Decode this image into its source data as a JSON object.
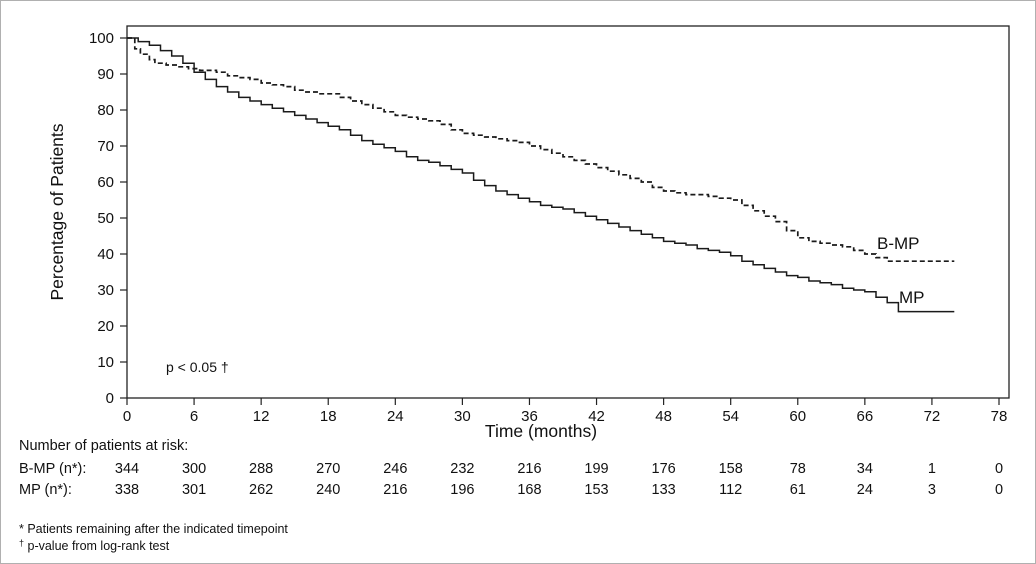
{
  "chart_data": {
    "type": "line",
    "subtype": "kaplan-meier-step",
    "title": "",
    "xlabel": "Time (months)",
    "ylabel": "Percentage of Patients",
    "xlim": [
      0,
      78
    ],
    "ylim": [
      0,
      100
    ],
    "xticks": [
      0,
      6,
      12,
      18,
      24,
      30,
      36,
      42,
      48,
      54,
      60,
      66,
      72,
      78
    ],
    "yticks": [
      0,
      10,
      20,
      30,
      40,
      50,
      60,
      70,
      80,
      90,
      100
    ],
    "grid": false,
    "annotation": "p < 0.05 †",
    "line_color": "#1a1a1a",
    "series": [
      {
        "name": "B-MP",
        "style": "dashed",
        "end_label": "B-MP",
        "points": [
          [
            0,
            100
          ],
          [
            0.7,
            97
          ],
          [
            1.2,
            95.5
          ],
          [
            2,
            94
          ],
          [
            2.5,
            93
          ],
          [
            3.5,
            92.5
          ],
          [
            4.5,
            92
          ],
          [
            5.5,
            91.5
          ],
          [
            6.5,
            91
          ],
          [
            8,
            90.5
          ],
          [
            9,
            89.5
          ],
          [
            10,
            89
          ],
          [
            11,
            88.5
          ],
          [
            12,
            87.5
          ],
          [
            13,
            87
          ],
          [
            14,
            86.5
          ],
          [
            15,
            85.5
          ],
          [
            16,
            85
          ],
          [
            17,
            84.5
          ],
          [
            18,
            84.5
          ],
          [
            19,
            83.5
          ],
          [
            20,
            82.5
          ],
          [
            21,
            81.5
          ],
          [
            22,
            80.5
          ],
          [
            23,
            79.5
          ],
          [
            24,
            78.5
          ],
          [
            25,
            78
          ],
          [
            26,
            77.5
          ],
          [
            27,
            77
          ],
          [
            28,
            76
          ],
          [
            29,
            74.5
          ],
          [
            30,
            73.5
          ],
          [
            31,
            73
          ],
          [
            32,
            72.5
          ],
          [
            33,
            72
          ],
          [
            34,
            71.5
          ],
          [
            35,
            71
          ],
          [
            36,
            70
          ],
          [
            37,
            69
          ],
          [
            38,
            68
          ],
          [
            39,
            67
          ],
          [
            40,
            66
          ],
          [
            41,
            65
          ],
          [
            42,
            64
          ],
          [
            43,
            63
          ],
          [
            44,
            62
          ],
          [
            45,
            61
          ],
          [
            46,
            60
          ],
          [
            47,
            58.5
          ],
          [
            48,
            57.5
          ],
          [
            49,
            57
          ],
          [
            50,
            56.5
          ],
          [
            51,
            56.5
          ],
          [
            52,
            56
          ],
          [
            53,
            55.5
          ],
          [
            54,
            55
          ],
          [
            55,
            53.5
          ],
          [
            56,
            52
          ],
          [
            57,
            50.5
          ],
          [
            58,
            49
          ],
          [
            59,
            46.5
          ],
          [
            60,
            44.5
          ],
          [
            61,
            43.5
          ],
          [
            62,
            43
          ],
          [
            63,
            42.5
          ],
          [
            64,
            42
          ],
          [
            65,
            41
          ],
          [
            66,
            40
          ],
          [
            67,
            39
          ],
          [
            68,
            38
          ],
          [
            74,
            38
          ]
        ]
      },
      {
        "name": "MP",
        "style": "solid",
        "end_label": "MP",
        "points": [
          [
            0,
            100
          ],
          [
            1,
            99
          ],
          [
            2,
            98
          ],
          [
            3,
            96.5
          ],
          [
            4,
            95
          ],
          [
            5,
            93
          ],
          [
            6,
            90.5
          ],
          [
            7,
            88.5
          ],
          [
            8,
            86.5
          ],
          [
            9,
            85
          ],
          [
            10,
            83.5
          ],
          [
            11,
            82.5
          ],
          [
            12,
            81.5
          ],
          [
            13,
            80.5
          ],
          [
            14,
            79.5
          ],
          [
            15,
            78.5
          ],
          [
            16,
            77.5
          ],
          [
            17,
            76.5
          ],
          [
            18,
            75.5
          ],
          [
            19,
            74.5
          ],
          [
            20,
            73
          ],
          [
            21,
            71.5
          ],
          [
            22,
            70.5
          ],
          [
            23,
            69.5
          ],
          [
            24,
            68.5
          ],
          [
            25,
            67
          ],
          [
            26,
            66
          ],
          [
            27,
            65.5
          ],
          [
            28,
            64.5
          ],
          [
            29,
            63.5
          ],
          [
            30,
            62.5
          ],
          [
            31,
            60.5
          ],
          [
            32,
            59
          ],
          [
            33,
            57.5
          ],
          [
            34,
            56.5
          ],
          [
            35,
            55.5
          ],
          [
            36,
            54.5
          ],
          [
            37,
            53.5
          ],
          [
            38,
            53
          ],
          [
            39,
            52.5
          ],
          [
            40,
            51.5
          ],
          [
            41,
            50.5
          ],
          [
            42,
            49.5
          ],
          [
            43,
            48.5
          ],
          [
            44,
            47.5
          ],
          [
            45,
            46.5
          ],
          [
            46,
            45.5
          ],
          [
            47,
            44.5
          ],
          [
            48,
            43.5
          ],
          [
            49,
            43
          ],
          [
            50,
            42.5
          ],
          [
            51,
            41.5
          ],
          [
            52,
            41
          ],
          [
            53,
            40.5
          ],
          [
            54,
            39.5
          ],
          [
            55,
            38
          ],
          [
            56,
            37
          ],
          [
            57,
            36
          ],
          [
            58,
            35
          ],
          [
            59,
            34
          ],
          [
            60,
            33.5
          ],
          [
            61,
            32.5
          ],
          [
            62,
            32
          ],
          [
            63,
            31.5
          ],
          [
            64,
            30.5
          ],
          [
            65,
            30
          ],
          [
            66,
            29.5
          ],
          [
            67,
            28
          ],
          [
            68,
            26.5
          ],
          [
            69,
            24
          ],
          [
            74,
            24
          ]
        ]
      }
    ],
    "risk_table": {
      "title": "Number of patients at risk:",
      "timepoints": [
        0,
        6,
        12,
        18,
        24,
        30,
        36,
        42,
        48,
        54,
        60,
        66,
        72,
        78
      ],
      "rows": [
        {
          "label": "B-MP  (n*):",
          "counts": [
            344,
            300,
            288,
            270,
            246,
            232,
            216,
            199,
            176,
            158,
            78,
            34,
            1,
            0
          ]
        },
        {
          "label": "MP  (n*):",
          "counts": [
            338,
            301,
            262,
            240,
            216,
            196,
            168,
            153,
            133,
            112,
            61,
            24,
            3,
            0
          ]
        }
      ]
    },
    "footnotes": {
      "line1": "* Patients remaining after the indicated timepoint",
      "line2_symbol": "†",
      "line2_text": " p-value from log-rank test"
    }
  }
}
